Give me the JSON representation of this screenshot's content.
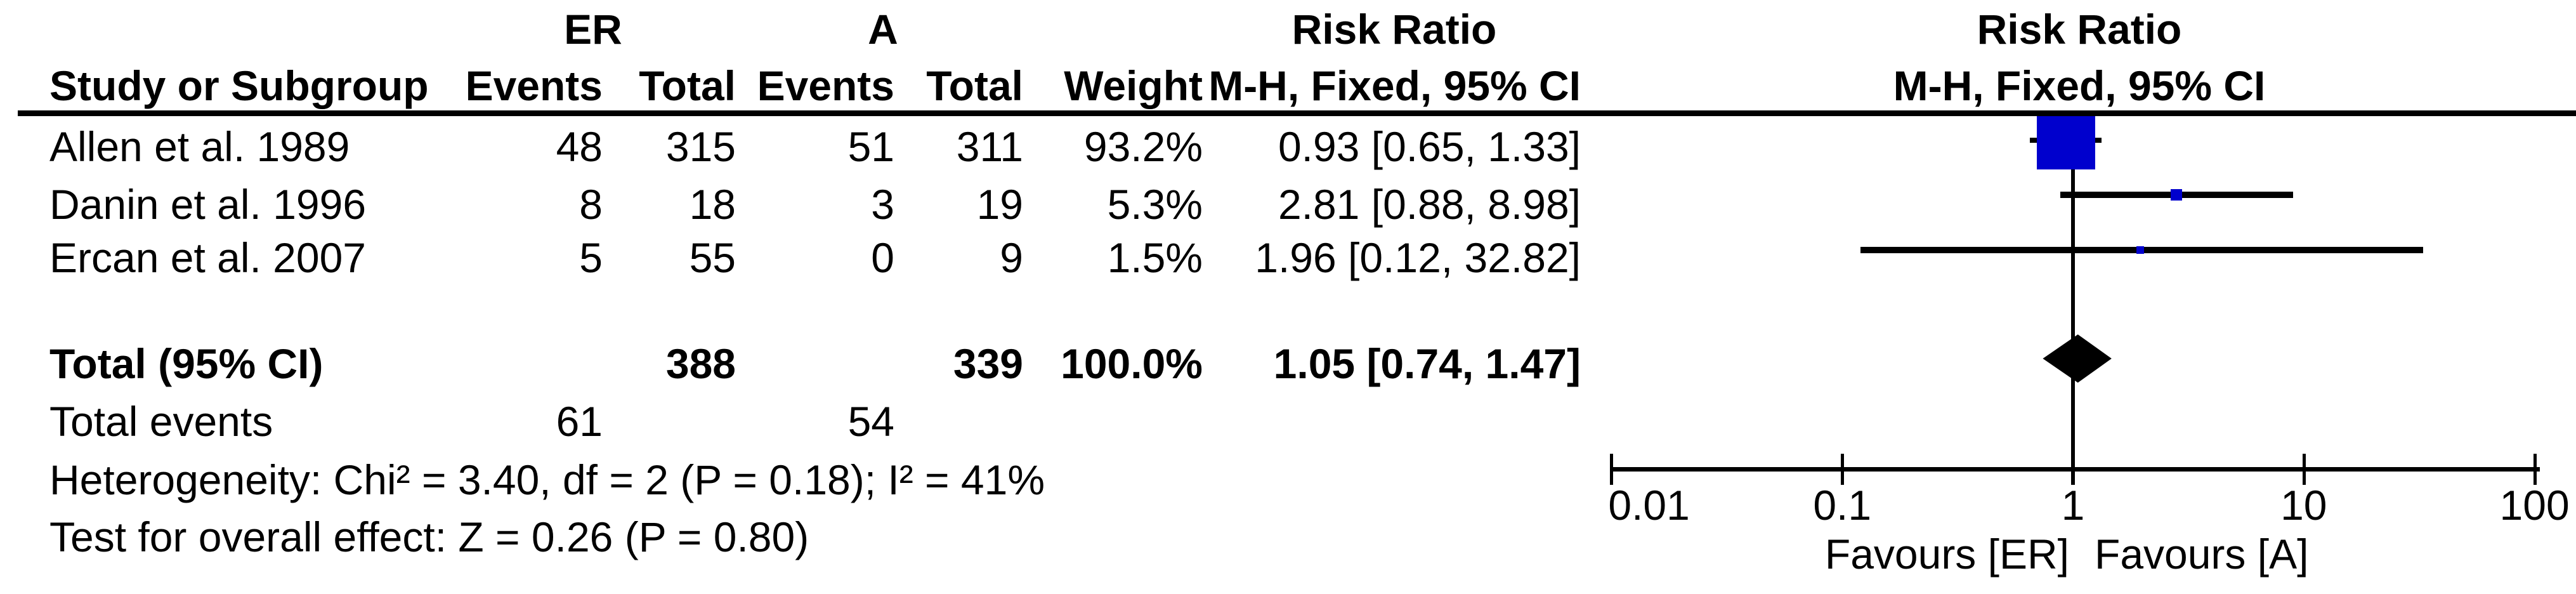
{
  "header": {
    "group1": "ER",
    "group2": "A",
    "col_study": "Study or Subgroup",
    "col_events": "Events",
    "col_total": "Total",
    "col_events2": "Events",
    "col_total2": "Total",
    "col_weight": "Weight",
    "effect_title": "Risk Ratio",
    "effect_method": "M-H, Fixed, 95% CI",
    "plot_title": "Risk Ratio",
    "plot_method": "M-H, Fixed, 95% CI"
  },
  "studies": [
    {
      "name": "Allen et al. 1989",
      "er_events": "48",
      "er_total": "315",
      "a_events": "51",
      "a_total": "311",
      "weight": "93.2%",
      "ci_text": "0.93 [0.65, 1.33]"
    },
    {
      "name": "Danin et al. 1996",
      "er_events": "8",
      "er_total": "18",
      "a_events": "3",
      "a_total": "19",
      "weight": "5.3%",
      "ci_text": "2.81 [0.88, 8.98]"
    },
    {
      "name": "Ercan et al. 2007",
      "er_events": "5",
      "er_total": "55",
      "a_events": "0",
      "a_total": "9",
      "weight": "1.5%",
      "ci_text": "1.96 [0.12, 32.82]"
    }
  ],
  "totals": {
    "label": "Total (95% CI)",
    "er_total": "388",
    "a_total": "339",
    "weight": "100.0%",
    "ci_text": "1.05 [0.74, 1.47]"
  },
  "total_events": {
    "label": "Total events",
    "er": "61",
    "a": "54"
  },
  "footer": {
    "heterogeneity": "Heterogeneity: Chi² = 3.40, df = 2 (P = 0.18); I² = 41%",
    "overall_effect": "Test for overall effect: Z = 0.26 (P = 0.80)"
  },
  "axis": {
    "tick_labels": [
      "0.01",
      "0.1",
      "1",
      "10",
      "100"
    ],
    "favours_left": "Favours [ER]",
    "favours_right": "Favours [A]"
  },
  "colors": {
    "marker_blue": "#0000CD",
    "diamond_black": "#000000",
    "text": "#000000",
    "line": "#000000"
  },
  "chart_data": {
    "type": "forest",
    "effect_measure": "Risk Ratio",
    "model": "M-H, Fixed",
    "ci_level": "95% CI",
    "x_scale": "log",
    "x_ticks": [
      0.01,
      0.1,
      1,
      10,
      100
    ],
    "x_axis_labels": {
      "left": "Favours [ER]",
      "right": "Favours [A]"
    },
    "studies": [
      {
        "name": "Allen et al. 1989",
        "rr": 0.93,
        "ci_low": 0.65,
        "ci_high": 1.33,
        "weight_pct": 93.2,
        "er_events": 48,
        "er_total": 315,
        "a_events": 51,
        "a_total": 311
      },
      {
        "name": "Danin et al. 1996",
        "rr": 2.81,
        "ci_low": 0.88,
        "ci_high": 8.98,
        "weight_pct": 5.3,
        "er_events": 8,
        "er_total": 18,
        "a_events": 3,
        "a_total": 19
      },
      {
        "name": "Ercan et al. 2007",
        "rr": 1.96,
        "ci_low": 0.12,
        "ci_high": 32.82,
        "weight_pct": 1.5,
        "er_events": 5,
        "er_total": 55,
        "a_events": 0,
        "a_total": 9
      }
    ],
    "total": {
      "label": "Total (95% CI)",
      "rr": 1.05,
      "ci_low": 0.74,
      "ci_high": 1.47,
      "weight_pct": 100.0,
      "er_total": 388,
      "a_total": 339,
      "er_events": 61,
      "a_events": 54
    },
    "heterogeneity": {
      "chi2": 3.4,
      "df": 2,
      "p": 0.18,
      "i2_pct": 41
    },
    "overall_effect": {
      "z": 0.26,
      "p": 0.8
    }
  }
}
